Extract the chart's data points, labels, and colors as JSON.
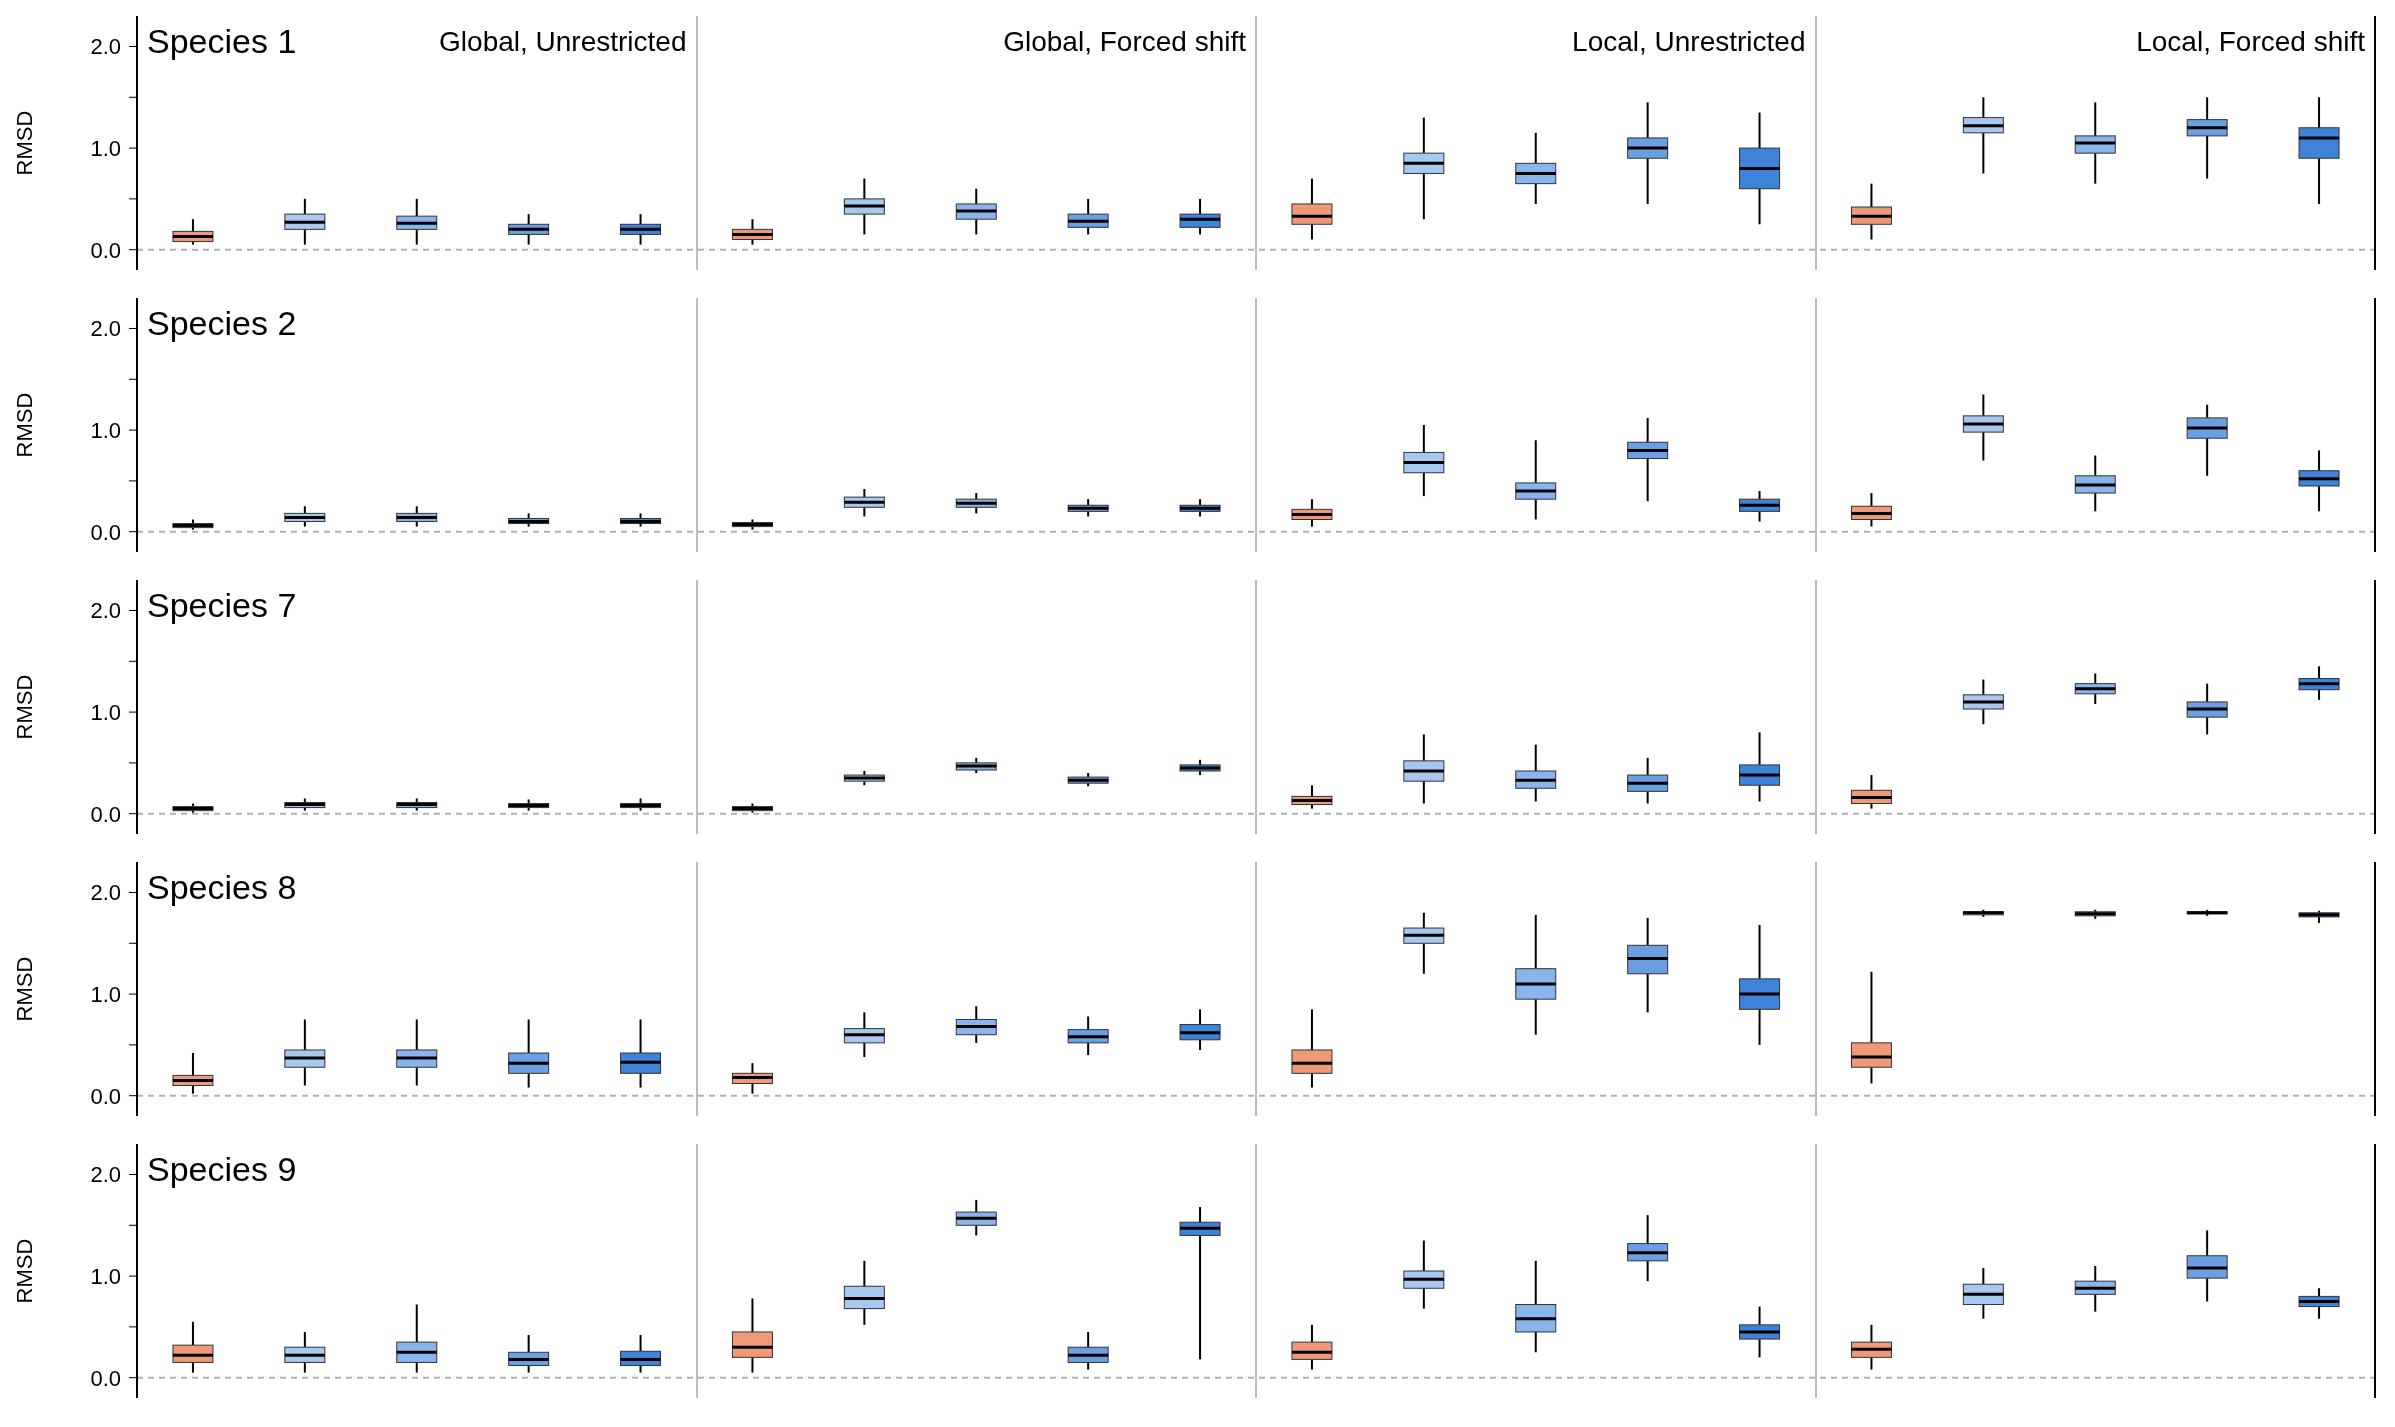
{
  "chart_data": [
    {
      "type": "box",
      "title": "Species 1",
      "ylabel": "RMSD",
      "tick_labels": "y",
      "ylim": [
        -0.2,
        2.3
      ],
      "yticks": [
        {
          "value": 0,
          "label": "0.0"
        },
        {
          "value": 0.5,
          "label": null
        },
        {
          "value": 1,
          "label": "1.0"
        },
        {
          "value": 1.5,
          "label": null
        },
        {
          "value": 2,
          "label": "2.0"
        }
      ],
      "annotations": [
        "Global, Unrestricted",
        "Global, Forced shift",
        "Local, Unrestricted",
        "Local, Forced shift"
      ],
      "ref_lines": [
        {
          "axis": "y",
          "value": 0,
          "color": "#b0b0b0",
          "line_style": "dashed"
        }
      ],
      "categories": [
        null,
        null,
        null,
        null,
        null,
        null,
        null,
        null,
        null,
        null,
        null,
        null,
        null,
        null,
        null,
        null,
        null,
        null,
        null,
        null
      ],
      "colors": [
        "#ee9a78",
        "#a8c8f0",
        "#8ab4ec",
        "#6a9fe3",
        "#3f83d9",
        "#ee9a78",
        "#a8c8f0",
        "#8ab4ec",
        "#6a9fe3",
        "#3f83d9",
        "#ee9a78",
        "#a8c8f0",
        "#8ab4ec",
        "#6a9fe3",
        "#3f83d9",
        "#ee9a78",
        "#a8c8f0",
        "#8ab4ec",
        "#6a9fe3",
        "#3f83d9"
      ],
      "boxes": [
        {
          "low": 0.05,
          "q1": 0.08,
          "median": 0.13,
          "q3": 0.18,
          "high": 0.3
        },
        {
          "low": 0.05,
          "q1": 0.2,
          "median": 0.27,
          "q3": 0.35,
          "high": 0.5
        },
        {
          "low": 0.05,
          "q1": 0.2,
          "median": 0.26,
          "q3": 0.33,
          "high": 0.5
        },
        {
          "low": 0.05,
          "q1": 0.15,
          "median": 0.2,
          "q3": 0.25,
          "high": 0.35
        },
        {
          "low": 0.05,
          "q1": 0.15,
          "median": 0.2,
          "q3": 0.25,
          "high": 0.35
        },
        {
          "low": 0.05,
          "q1": 0.1,
          "median": 0.15,
          "q3": 0.2,
          "high": 0.3
        },
        {
          "low": 0.15,
          "q1": 0.35,
          "median": 0.43,
          "q3": 0.5,
          "high": 0.7
        },
        {
          "low": 0.15,
          "q1": 0.3,
          "median": 0.38,
          "q3": 0.45,
          "high": 0.6
        },
        {
          "low": 0.15,
          "q1": 0.22,
          "median": 0.28,
          "q3": 0.35,
          "high": 0.5
        },
        {
          "low": 0.15,
          "q1": 0.22,
          "median": 0.3,
          "q3": 0.35,
          "high": 0.5
        },
        {
          "low": 0.1,
          "q1": 0.25,
          "median": 0.33,
          "q3": 0.45,
          "high": 0.7
        },
        {
          "low": 0.3,
          "q1": 0.75,
          "median": 0.85,
          "q3": 0.95,
          "high": 1.3
        },
        {
          "low": 0.45,
          "q1": 0.65,
          "median": 0.75,
          "q3": 0.85,
          "high": 1.15
        },
        {
          "low": 0.45,
          "q1": 0.9,
          "median": 1.0,
          "q3": 1.1,
          "high": 1.45
        },
        {
          "low": 0.25,
          "q1": 0.6,
          "median": 0.8,
          "q3": 1.0,
          "high": 1.35
        },
        {
          "low": 0.1,
          "q1": 0.25,
          "median": 0.33,
          "q3": 0.42,
          "high": 0.65
        },
        {
          "low": 0.75,
          "q1": 1.15,
          "median": 1.22,
          "q3": 1.3,
          "high": 1.5
        },
        {
          "low": 0.65,
          "q1": 0.95,
          "median": 1.05,
          "q3": 1.12,
          "high": 1.45
        },
        {
          "low": 0.7,
          "q1": 1.12,
          "median": 1.2,
          "q3": 1.28,
          "high": 1.5
        },
        {
          "low": 0.45,
          "q1": 0.9,
          "median": 1.1,
          "q3": 1.2,
          "high": 1.5
        }
      ]
    },
    {
      "type": "box",
      "title": "Species 2",
      "ylabel": "RMSD",
      "tick_labels": "y",
      "ylim": [
        -0.2,
        2.3
      ],
      "yticks": [
        {
          "value": 0,
          "label": "0.0"
        },
        {
          "value": 0.5,
          "label": null
        },
        {
          "value": 1,
          "label": "1.0"
        },
        {
          "value": 1.5,
          "label": null
        },
        {
          "value": 2,
          "label": "2.0"
        }
      ],
      "ref_lines": [
        {
          "axis": "y",
          "value": 0,
          "color": "#b0b0b0",
          "line_style": "dashed"
        }
      ],
      "categories": [
        null,
        null,
        null,
        null,
        null,
        null,
        null,
        null,
        null,
        null,
        null,
        null,
        null,
        null,
        null,
        null,
        null,
        null,
        null,
        null
      ],
      "colors": [
        "#ee9a78",
        "#a8c8f0",
        "#8ab4ec",
        "#6a9fe3",
        "#3f83d9",
        "#ee9a78",
        "#a8c8f0",
        "#8ab4ec",
        "#6a9fe3",
        "#3f83d9",
        "#ee9a78",
        "#a8c8f0",
        "#8ab4ec",
        "#6a9fe3",
        "#3f83d9",
        "#ee9a78",
        "#a8c8f0",
        "#8ab4ec",
        "#6a9fe3",
        "#3f83d9"
      ],
      "boxes": [
        {
          "low": 0.02,
          "q1": 0.04,
          "median": 0.06,
          "q3": 0.08,
          "high": 0.12
        },
        {
          "low": 0.05,
          "q1": 0.1,
          "median": 0.14,
          "q3": 0.18,
          "high": 0.25
        },
        {
          "low": 0.05,
          "q1": 0.1,
          "median": 0.14,
          "q3": 0.18,
          "high": 0.25
        },
        {
          "low": 0.05,
          "q1": 0.08,
          "median": 0.1,
          "q3": 0.13,
          "high": 0.18
        },
        {
          "low": 0.05,
          "q1": 0.08,
          "median": 0.1,
          "q3": 0.13,
          "high": 0.18
        },
        {
          "low": 0.02,
          "q1": 0.05,
          "median": 0.07,
          "q3": 0.09,
          "high": 0.12
        },
        {
          "low": 0.15,
          "q1": 0.24,
          "median": 0.29,
          "q3": 0.34,
          "high": 0.42
        },
        {
          "low": 0.18,
          "q1": 0.24,
          "median": 0.28,
          "q3": 0.32,
          "high": 0.38
        },
        {
          "low": 0.15,
          "q1": 0.2,
          "median": 0.23,
          "q3": 0.26,
          "high": 0.32
        },
        {
          "low": 0.15,
          "q1": 0.2,
          "median": 0.23,
          "q3": 0.26,
          "high": 0.32
        },
        {
          "low": 0.05,
          "q1": 0.12,
          "median": 0.17,
          "q3": 0.22,
          "high": 0.32
        },
        {
          "low": 0.35,
          "q1": 0.58,
          "median": 0.68,
          "q3": 0.78,
          "high": 1.05
        },
        {
          "low": 0.12,
          "q1": 0.32,
          "median": 0.4,
          "q3": 0.48,
          "high": 0.9
        },
        {
          "low": 0.3,
          "q1": 0.72,
          "median": 0.8,
          "q3": 0.88,
          "high": 1.12
        },
        {
          "low": 0.1,
          "q1": 0.2,
          "median": 0.26,
          "q3": 0.32,
          "high": 0.4
        },
        {
          "low": 0.05,
          "q1": 0.12,
          "median": 0.18,
          "q3": 0.25,
          "high": 0.38
        },
        {
          "low": 0.7,
          "q1": 0.98,
          "median": 1.06,
          "q3": 1.14,
          "high": 1.35
        },
        {
          "low": 0.2,
          "q1": 0.38,
          "median": 0.46,
          "q3": 0.55,
          "high": 0.75
        },
        {
          "low": 0.55,
          "q1": 0.92,
          "median": 1.02,
          "q3": 1.12,
          "high": 1.25
        },
        {
          "low": 0.2,
          "q1": 0.45,
          "median": 0.52,
          "q3": 0.6,
          "high": 0.8
        }
      ]
    },
    {
      "type": "box",
      "title": "Species 7",
      "ylabel": "RMSD",
      "tick_labels": "y",
      "ylim": [
        -0.2,
        2.3
      ],
      "yticks": [
        {
          "value": 0,
          "label": "0.0"
        },
        {
          "value": 0.5,
          "label": null
        },
        {
          "value": 1,
          "label": "1.0"
        },
        {
          "value": 1.5,
          "label": null
        },
        {
          "value": 2,
          "label": "2.0"
        }
      ],
      "ref_lines": [
        {
          "axis": "y",
          "value": 0,
          "color": "#b0b0b0",
          "line_style": "dashed"
        }
      ],
      "categories": [
        null,
        null,
        null,
        null,
        null,
        null,
        null,
        null,
        null,
        null,
        null,
        null,
        null,
        null,
        null,
        null,
        null,
        null,
        null,
        null
      ],
      "colors": [
        "#ee9a78",
        "#a8c8f0",
        "#8ab4ec",
        "#6a9fe3",
        "#3f83d9",
        "#ee9a78",
        "#a8c8f0",
        "#8ab4ec",
        "#6a9fe3",
        "#3f83d9",
        "#ee9a78",
        "#a8c8f0",
        "#8ab4ec",
        "#6a9fe3",
        "#3f83d9",
        "#ee9a78",
        "#a8c8f0",
        "#8ab4ec",
        "#6a9fe3",
        "#3f83d9"
      ],
      "boxes": [
        {
          "low": 0.01,
          "q1": 0.03,
          "median": 0.05,
          "q3": 0.07,
          "high": 0.1
        },
        {
          "low": 0.03,
          "q1": 0.06,
          "median": 0.09,
          "q3": 0.11,
          "high": 0.15
        },
        {
          "low": 0.03,
          "q1": 0.06,
          "median": 0.09,
          "q3": 0.11,
          "high": 0.15
        },
        {
          "low": 0.03,
          "q1": 0.06,
          "median": 0.08,
          "q3": 0.1,
          "high": 0.14
        },
        {
          "low": 0.03,
          "q1": 0.06,
          "median": 0.08,
          "q3": 0.1,
          "high": 0.15
        },
        {
          "low": 0.01,
          "q1": 0.03,
          "median": 0.05,
          "q3": 0.07,
          "high": 0.1
        },
        {
          "low": 0.28,
          "q1": 0.32,
          "median": 0.35,
          "q3": 0.38,
          "high": 0.42
        },
        {
          "low": 0.4,
          "q1": 0.43,
          "median": 0.47,
          "q3": 0.5,
          "high": 0.55
        },
        {
          "low": 0.27,
          "q1": 0.3,
          "median": 0.33,
          "q3": 0.36,
          "high": 0.4
        },
        {
          "low": 0.38,
          "q1": 0.42,
          "median": 0.45,
          "q3": 0.48,
          "high": 0.53
        },
        {
          "low": 0.05,
          "q1": 0.09,
          "median": 0.13,
          "q3": 0.17,
          "high": 0.28
        },
        {
          "low": 0.1,
          "q1": 0.32,
          "median": 0.42,
          "q3": 0.52,
          "high": 0.78
        },
        {
          "low": 0.12,
          "q1": 0.25,
          "median": 0.33,
          "q3": 0.42,
          "high": 0.68
        },
        {
          "low": 0.1,
          "q1": 0.22,
          "median": 0.3,
          "q3": 0.38,
          "high": 0.55
        },
        {
          "low": 0.12,
          "q1": 0.28,
          "median": 0.38,
          "q3": 0.48,
          "high": 0.8
        },
        {
          "low": 0.05,
          "q1": 0.1,
          "median": 0.16,
          "q3": 0.23,
          "high": 0.38
        },
        {
          "low": 0.88,
          "q1": 1.03,
          "median": 1.1,
          "q3": 1.17,
          "high": 1.32
        },
        {
          "low": 1.08,
          "q1": 1.18,
          "median": 1.23,
          "q3": 1.28,
          "high": 1.38
        },
        {
          "low": 0.78,
          "q1": 0.95,
          "median": 1.03,
          "q3": 1.1,
          "high": 1.28
        },
        {
          "low": 1.12,
          "q1": 1.22,
          "median": 1.28,
          "q3": 1.33,
          "high": 1.45
        }
      ]
    },
    {
      "type": "box",
      "title": "Species 8",
      "ylabel": "RMSD",
      "tick_labels": "y",
      "ylim": [
        -0.2,
        2.3
      ],
      "yticks": [
        {
          "value": 0,
          "label": "0.0"
        },
        {
          "value": 0.5,
          "label": null
        },
        {
          "value": 1,
          "label": "1.0"
        },
        {
          "value": 1.5,
          "label": null
        },
        {
          "value": 2,
          "label": "2.0"
        }
      ],
      "ref_lines": [
        {
          "axis": "y",
          "value": 0,
          "color": "#b0b0b0",
          "line_style": "dashed"
        }
      ],
      "categories": [
        null,
        null,
        null,
        null,
        null,
        null,
        null,
        null,
        null,
        null,
        null,
        null,
        null,
        null,
        null,
        null,
        null,
        null,
        null,
        null
      ],
      "colors": [
        "#ee9a78",
        "#a8c8f0",
        "#8ab4ec",
        "#6a9fe3",
        "#3f83d9",
        "#ee9a78",
        "#a8c8f0",
        "#8ab4ec",
        "#6a9fe3",
        "#3f83d9",
        "#ee9a78",
        "#a8c8f0",
        "#8ab4ec",
        "#6a9fe3",
        "#3f83d9",
        "#ee9a78",
        "#a8c8f0",
        "#8ab4ec",
        "#6a9fe3",
        "#3f83d9"
      ],
      "boxes": [
        {
          "low": 0.02,
          "q1": 0.1,
          "median": 0.15,
          "q3": 0.2,
          "high": 0.42
        },
        {
          "low": 0.1,
          "q1": 0.28,
          "median": 0.37,
          "q3": 0.45,
          "high": 0.75
        },
        {
          "low": 0.1,
          "q1": 0.28,
          "median": 0.37,
          "q3": 0.45,
          "high": 0.75
        },
        {
          "low": 0.08,
          "q1": 0.22,
          "median": 0.32,
          "q3": 0.42,
          "high": 0.75
        },
        {
          "low": 0.08,
          "q1": 0.22,
          "median": 0.33,
          "q3": 0.42,
          "high": 0.75
        },
        {
          "low": 0.02,
          "q1": 0.12,
          "median": 0.18,
          "q3": 0.22,
          "high": 0.32
        },
        {
          "low": 0.38,
          "q1": 0.52,
          "median": 0.6,
          "q3": 0.66,
          "high": 0.82
        },
        {
          "low": 0.52,
          "q1": 0.6,
          "median": 0.68,
          "q3": 0.75,
          "high": 0.88
        },
        {
          "low": 0.4,
          "q1": 0.52,
          "median": 0.58,
          "q3": 0.65,
          "high": 0.78
        },
        {
          "low": 0.45,
          "q1": 0.55,
          "median": 0.62,
          "q3": 0.7,
          "high": 0.85
        },
        {
          "low": 0.08,
          "q1": 0.22,
          "median": 0.32,
          "q3": 0.45,
          "high": 0.85
        },
        {
          "low": 1.2,
          "q1": 1.5,
          "median": 1.58,
          "q3": 1.65,
          "high": 1.8
        },
        {
          "low": 0.6,
          "q1": 0.95,
          "median": 1.1,
          "q3": 1.25,
          "high": 1.78
        },
        {
          "low": 0.82,
          "q1": 1.2,
          "median": 1.35,
          "q3": 1.48,
          "high": 1.75
        },
        {
          "low": 0.5,
          "q1": 0.85,
          "median": 1.0,
          "q3": 1.15,
          "high": 1.68
        },
        {
          "low": 0.12,
          "q1": 0.28,
          "median": 0.38,
          "q3": 0.52,
          "high": 1.22
        },
        {
          "low": 1.76,
          "q1": 1.78,
          "median": 1.8,
          "q3": 1.81,
          "high": 1.83
        },
        {
          "low": 1.74,
          "q1": 1.77,
          "median": 1.79,
          "q3": 1.81,
          "high": 1.83
        },
        {
          "low": 1.77,
          "q1": 1.79,
          "median": 1.8,
          "q3": 1.81,
          "high": 1.83
        },
        {
          "low": 1.7,
          "q1": 1.76,
          "median": 1.78,
          "q3": 1.8,
          "high": 1.82
        }
      ]
    },
    {
      "type": "box",
      "title": "Species 9",
      "ylabel": "RMSD",
      "tick_labels": "y",
      "ylim": [
        -0.2,
        2.3
      ],
      "yticks": [
        {
          "value": 0,
          "label": "0.0"
        },
        {
          "value": 0.5,
          "label": null
        },
        {
          "value": 1,
          "label": "1.0"
        },
        {
          "value": 1.5,
          "label": null
        },
        {
          "value": 2,
          "label": "2.0"
        }
      ],
      "ref_lines": [
        {
          "axis": "y",
          "value": 0,
          "color": "#b0b0b0",
          "line_style": "dashed"
        }
      ],
      "categories": [
        null,
        null,
        null,
        null,
        null,
        null,
        null,
        null,
        null,
        null,
        null,
        null,
        null,
        null,
        null,
        null,
        null,
        null,
        null,
        null
      ],
      "colors": [
        "#ee9a78",
        "#a8c8f0",
        "#8ab4ec",
        "#6a9fe3",
        "#3f83d9",
        "#ee9a78",
        "#a8c8f0",
        "#8ab4ec",
        "#6a9fe3",
        "#3f83d9",
        "#ee9a78",
        "#a8c8f0",
        "#8ab4ec",
        "#6a9fe3",
        "#3f83d9",
        "#ee9a78",
        "#a8c8f0",
        "#8ab4ec",
        "#6a9fe3",
        "#3f83d9"
      ],
      "boxes": [
        {
          "low": 0.05,
          "q1": 0.15,
          "median": 0.22,
          "q3": 0.32,
          "high": 0.55
        },
        {
          "low": 0.05,
          "q1": 0.15,
          "median": 0.22,
          "q3": 0.3,
          "high": 0.45
        },
        {
          "low": 0.05,
          "q1": 0.15,
          "median": 0.25,
          "q3": 0.35,
          "high": 0.72
        },
        {
          "low": 0.05,
          "q1": 0.12,
          "median": 0.18,
          "q3": 0.25,
          "high": 0.42
        },
        {
          "low": 0.05,
          "q1": 0.12,
          "median": 0.18,
          "q3": 0.26,
          "high": 0.42
        },
        {
          "low": 0.05,
          "q1": 0.2,
          "median": 0.3,
          "q3": 0.45,
          "high": 0.78
        },
        {
          "low": 0.52,
          "q1": 0.68,
          "median": 0.78,
          "q3": 0.9,
          "high": 1.15
        },
        {
          "low": 1.4,
          "q1": 1.5,
          "median": 1.57,
          "q3": 1.63,
          "high": 1.75
        },
        {
          "low": 0.08,
          "q1": 0.15,
          "median": 0.22,
          "q3": 0.3,
          "high": 0.45
        },
        {
          "low": 0.18,
          "q1": 1.4,
          "median": 1.47,
          "q3": 1.53,
          "high": 1.68
        },
        {
          "low": 0.08,
          "q1": 0.18,
          "median": 0.25,
          "q3": 0.35,
          "high": 0.52
        },
        {
          "low": 0.68,
          "q1": 0.88,
          "median": 0.97,
          "q3": 1.05,
          "high": 1.35
        },
        {
          "low": 0.25,
          "q1": 0.45,
          "median": 0.58,
          "q3": 0.72,
          "high": 1.15
        },
        {
          "low": 0.95,
          "q1": 1.15,
          "median": 1.23,
          "q3": 1.32,
          "high": 1.6
        },
        {
          "low": 0.2,
          "q1": 0.38,
          "median": 0.45,
          "q3": 0.52,
          "high": 0.7
        },
        {
          "low": 0.08,
          "q1": 0.2,
          "median": 0.28,
          "q3": 0.35,
          "high": 0.52
        },
        {
          "low": 0.58,
          "q1": 0.72,
          "median": 0.82,
          "q3": 0.92,
          "high": 1.08
        },
        {
          "low": 0.65,
          "q1": 0.82,
          "median": 0.88,
          "q3": 0.95,
          "high": 1.1
        },
        {
          "low": 0.75,
          "q1": 0.98,
          "median": 1.08,
          "q3": 1.2,
          "high": 1.45
        },
        {
          "low": 0.58,
          "q1": 0.7,
          "median": 0.75,
          "q3": 0.8,
          "high": 0.88
        }
      ]
    }
  ]
}
